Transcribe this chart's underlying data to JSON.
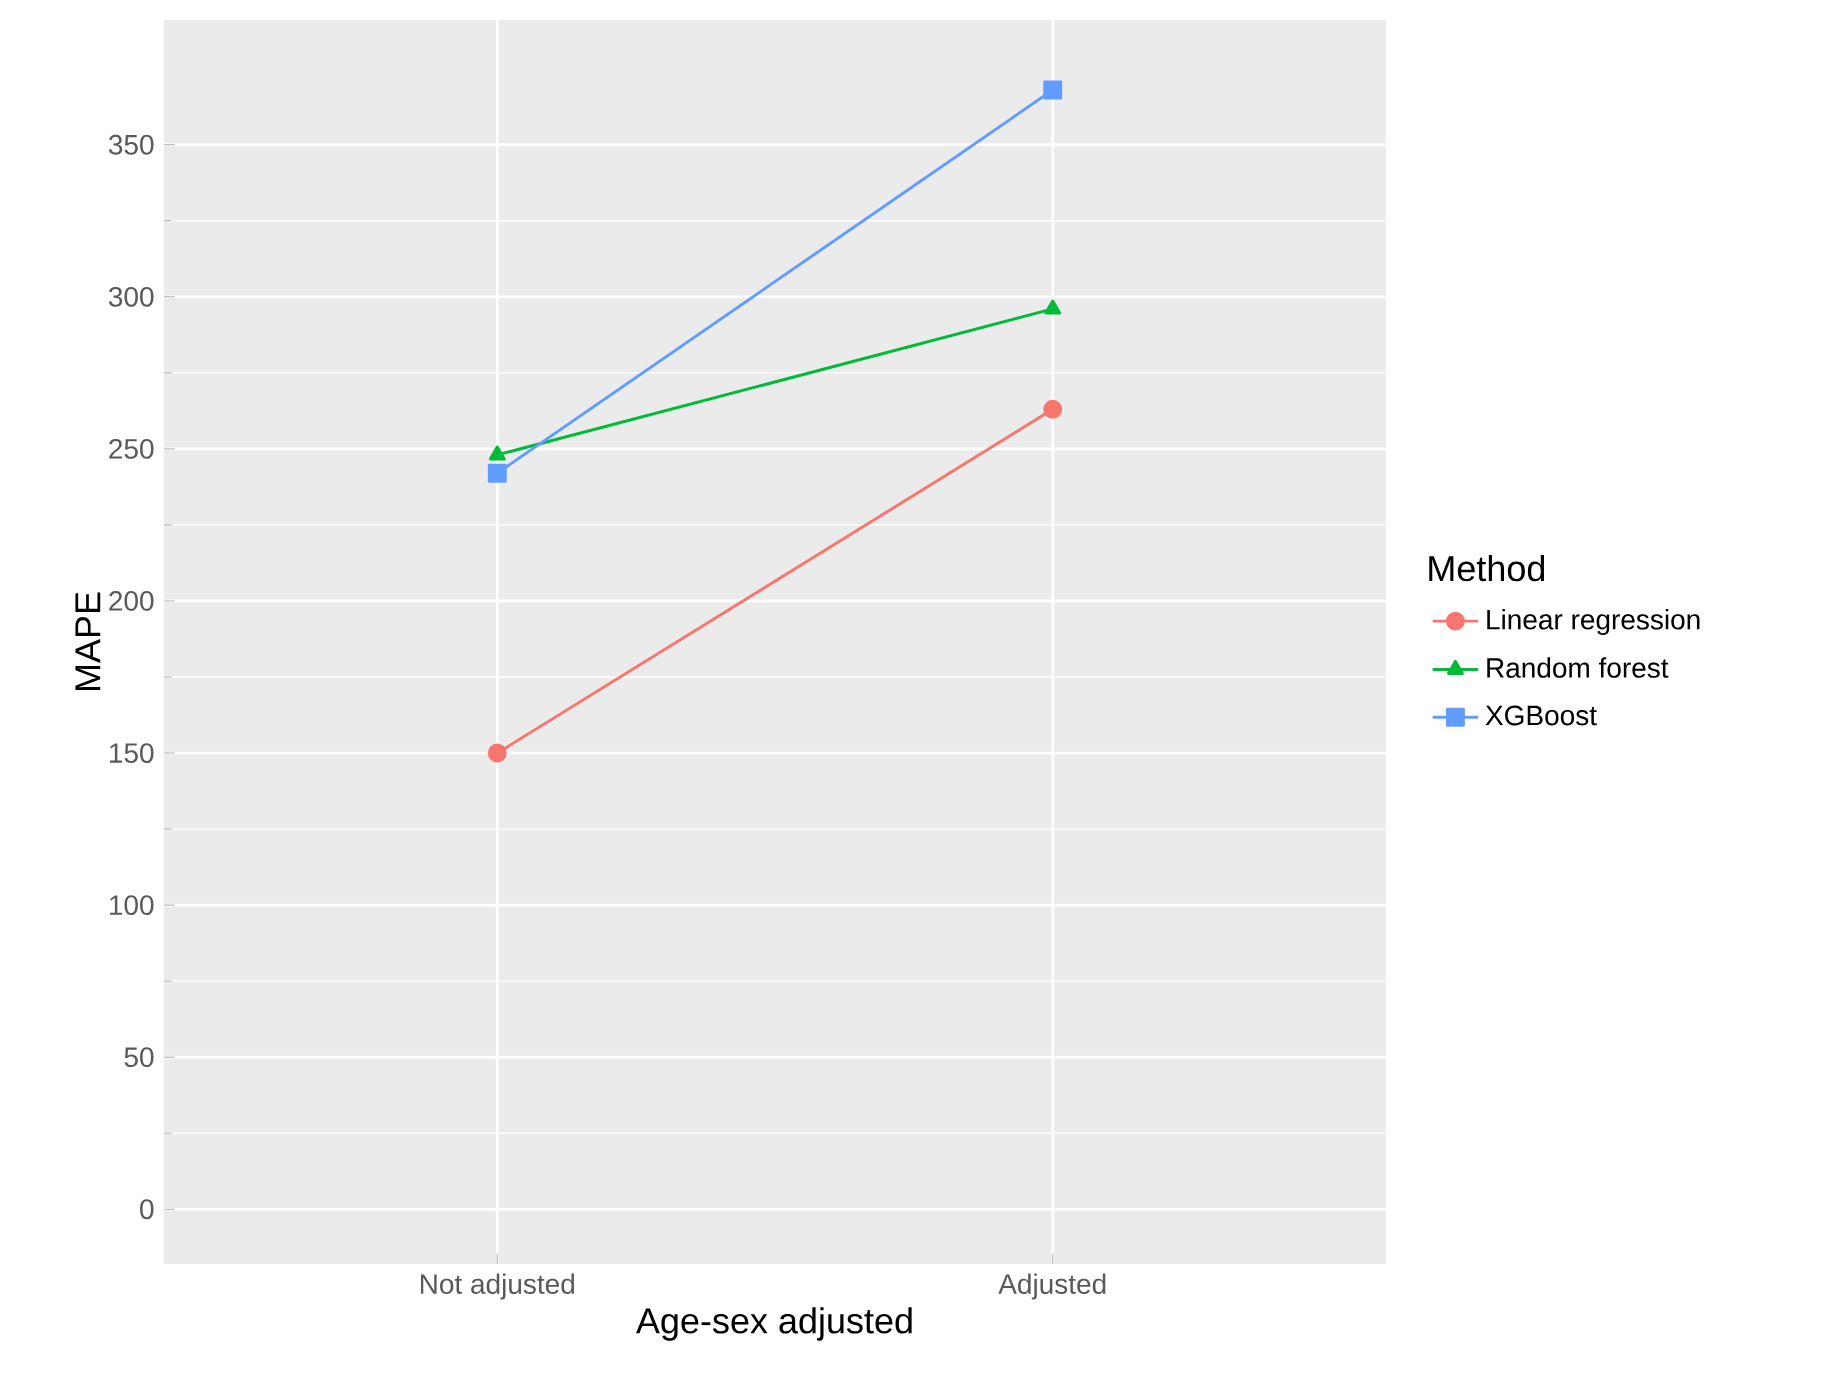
{
  "chart_data": {
    "type": "line",
    "xlabel": "Age-sex adjusted",
    "ylabel": "MAPE",
    "legend_title": "Method",
    "categories": [
      "Not adjusted",
      "Adjusted"
    ],
    "series": [
      {
        "name": "Linear regression",
        "color": "#f8766d",
        "marker": "circle",
        "values": [
          150,
          263
        ]
      },
      {
        "name": "Random forest",
        "color": "#00ba38",
        "marker": "triangle",
        "values": [
          248,
          296
        ]
      },
      {
        "name": "XGBoost",
        "color": "#619cff",
        "marker": "square",
        "values": [
          242,
          368
        ]
      }
    ],
    "ylim": [
      -18,
      391
    ],
    "yticks": [
      0,
      50,
      100,
      150,
      200,
      250,
      300,
      350
    ],
    "grid": true,
    "legend": "right"
  }
}
